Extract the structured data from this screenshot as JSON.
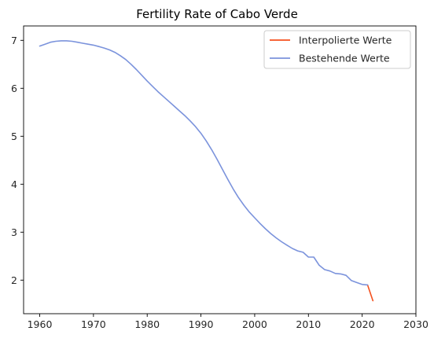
{
  "chart_data": {
    "type": "line",
    "title": "Fertility Rate of Cabo Verde",
    "xlabel": "",
    "ylabel": "",
    "xlim": [
      1957,
      2030
    ],
    "ylim": [
      1.3,
      7.3
    ],
    "x_ticks": [
      1960,
      1970,
      1980,
      1990,
      2000,
      2010,
      2020,
      2030
    ],
    "y_ticks": [
      2,
      3,
      4,
      5,
      6,
      7
    ],
    "grid": false,
    "legend_position": "top-right",
    "series": [
      {
        "name": "Interpolierte Werte",
        "color": "#f4511e",
        "x": [
          2021,
          2022
        ],
        "y": [
          1.9,
          1.57
        ]
      },
      {
        "name": "Bestehende Werte",
        "color": "#7b93dc",
        "x": [
          1960,
          1961,
          1962,
          1963,
          1964,
          1965,
          1966,
          1967,
          1968,
          1969,
          1970,
          1971,
          1972,
          1973,
          1974,
          1975,
          1976,
          1977,
          1978,
          1979,
          1980,
          1981,
          1982,
          1983,
          1984,
          1985,
          1986,
          1987,
          1988,
          1989,
          1990,
          1991,
          1992,
          1993,
          1994,
          1995,
          1996,
          1997,
          1998,
          1999,
          2000,
          2001,
          2002,
          2003,
          2004,
          2005,
          2006,
          2007,
          2008,
          2009,
          2010,
          2011,
          2012,
          2013,
          2014,
          2015,
          2016,
          2017,
          2018,
          2019,
          2020,
          2021
        ],
        "y": [
          6.88,
          6.92,
          6.96,
          6.98,
          6.99,
          6.99,
          6.98,
          6.96,
          6.94,
          6.92,
          6.9,
          6.87,
          6.84,
          6.8,
          6.75,
          6.68,
          6.6,
          6.5,
          6.39,
          6.27,
          6.15,
          6.04,
          5.93,
          5.83,
          5.73,
          5.63,
          5.53,
          5.43,
          5.32,
          5.2,
          5.06,
          4.9,
          4.72,
          4.52,
          4.31,
          4.1,
          3.9,
          3.72,
          3.56,
          3.42,
          3.3,
          3.18,
          3.07,
          2.97,
          2.88,
          2.8,
          2.73,
          2.66,
          2.61,
          2.58,
          2.48,
          2.48,
          2.31,
          2.22,
          2.19,
          2.14,
          2.13,
          2.1,
          1.99,
          1.95,
          1.91,
          1.9
        ]
      }
    ]
  }
}
